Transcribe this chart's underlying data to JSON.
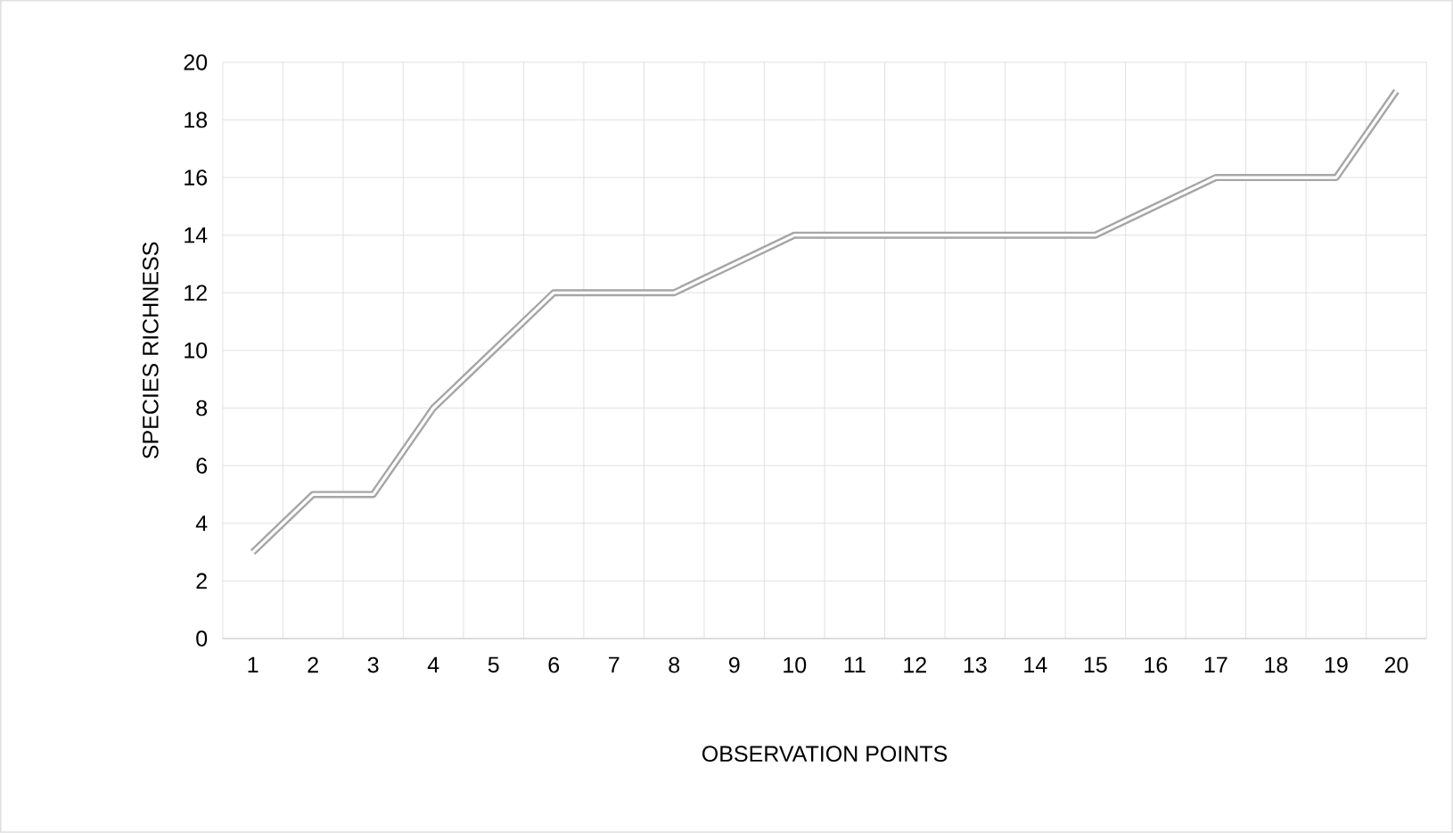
{
  "chart_data": {
    "type": "line",
    "xlabel": "OBSERVATION POINTS",
    "ylabel": "SPECIES RICHNESS",
    "categories": [
      "1",
      "2",
      "3",
      "4",
      "5",
      "6",
      "7",
      "8",
      "9",
      "10",
      "11",
      "12",
      "13",
      "14",
      "15",
      "16",
      "17",
      "18",
      "19",
      "20"
    ],
    "series": [
      {
        "color": "#a6a6a6",
        "values": [
          3,
          5,
          5,
          8,
          10,
          12,
          12,
          12,
          13,
          14,
          14,
          14,
          14,
          14,
          14,
          15,
          16,
          16,
          16,
          19
        ]
      }
    ],
    "ylim": [
      0,
      20
    ],
    "yticks": [
      0,
      2,
      4,
      6,
      8,
      10,
      12,
      14,
      16,
      18,
      20
    ],
    "grid": true,
    "marker": "none",
    "line_style": "solid"
  }
}
